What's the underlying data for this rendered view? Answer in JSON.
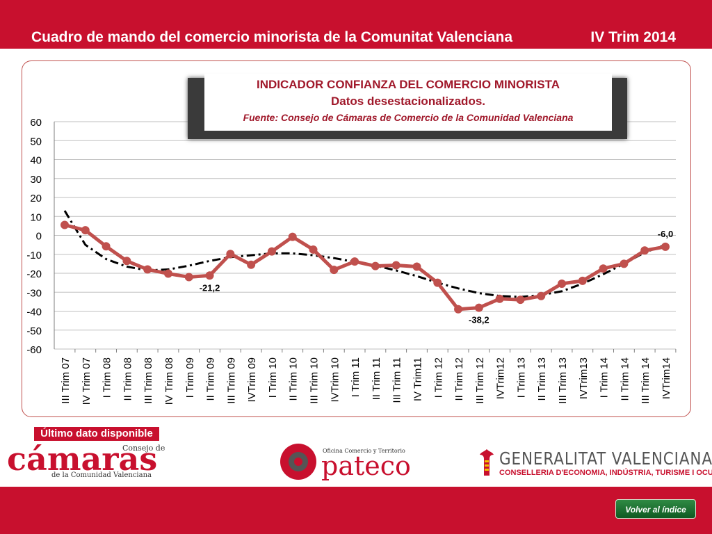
{
  "header": {
    "title": "Cuadro de mando del comercio minorista de la Comunitat Valenciana",
    "period": "IV Trim 2014"
  },
  "colors": {
    "brand_red": "#c8102e",
    "series_line": "#c0504d",
    "trend_line": "#000000",
    "title_text": "#a0182a"
  },
  "chart_data": {
    "type": "line",
    "title": "INDICADOR CONFIANZA DEL COMERCIO MINORISTA",
    "subtitle": "Datos desestacionalizados.",
    "source": "Fuente: Consejo de Cámaras de Comercio de la Comunidad Valenciana",
    "categories": [
      "III Trim 07",
      "IV Trim 07",
      "I Trim 08",
      "II Trim 08",
      "III Trim 08",
      "IV Trim 08",
      "I Trim 09",
      "II Trim 09",
      "III Trim 09",
      "IVTrim 09",
      "I Trim 10",
      "II Trim 10",
      "III Trim 10",
      "IVTrim 10",
      "I Trim 11",
      "II Trim 11",
      "III Trim 11",
      "IV Trim11",
      "I Trim 12",
      "II Trim 12",
      "III Trim 12",
      "IVTrim12",
      "I Trim 13",
      "II Trim 13",
      "III Trim 13",
      "IVTrim13",
      "I Trim 14",
      "II Trim 14",
      "III Trim 14",
      "IVTrim14"
    ],
    "series": [
      {
        "values": [
          5.5,
          2.7,
          -5.8,
          -13.5,
          -18,
          -20.2,
          -22,
          -21.2,
          -9.8,
          -15.5,
          -8.5,
          -0.8,
          -7.5,
          -18.2,
          -13.8,
          -16.2,
          -15.8,
          -16.5,
          -25,
          -39,
          -38.2,
          -33.5,
          -34,
          -32,
          -25.5,
          -24,
          -17.5,
          -15,
          -8,
          -6
        ]
      },
      {
        "values": [
          13,
          -5,
          -12.5,
          -16.5,
          -18.5,
          -18,
          -16,
          -13.5,
          -11.5,
          -10.5,
          -9.5,
          -9.5,
          -10.5,
          -12,
          -14,
          -16,
          -18.5,
          -21.5,
          -25,
          -28,
          -30.5,
          -32,
          -32.5,
          -31.5,
          -29.5,
          -25.5,
          -20.5,
          -15,
          -9,
          -5
        ]
      }
    ],
    "data_labels": [
      {
        "index": 7,
        "text": "-21,2"
      },
      {
        "index": 20,
        "text": "-38,2"
      },
      {
        "index": 29,
        "text": "-6,0"
      }
    ],
    "y_ticks": [
      60,
      50,
      40,
      30,
      20,
      10,
      0,
      -10,
      -20,
      -30,
      -40,
      -50,
      -60
    ],
    "ylim": [
      -60,
      60
    ],
    "grid": true,
    "legend": "none"
  },
  "footer": {
    "badge": "Último dato disponible",
    "camaras": {
      "big": "cámaras",
      "consejo": "Consejo de",
      "sub": "de la Comunidad Valenciana"
    },
    "pateco": {
      "small": "Oficina Comercio y Territorio",
      "word": "pateco"
    },
    "generalitat": {
      "title": "GENERALITAT VALENCIANA",
      "sub": "CONSELLERIA D'ECONOMIA, INDÚSTRIA, TURISME I OCUPACIÓ"
    },
    "back_button": "Volver al índice"
  }
}
